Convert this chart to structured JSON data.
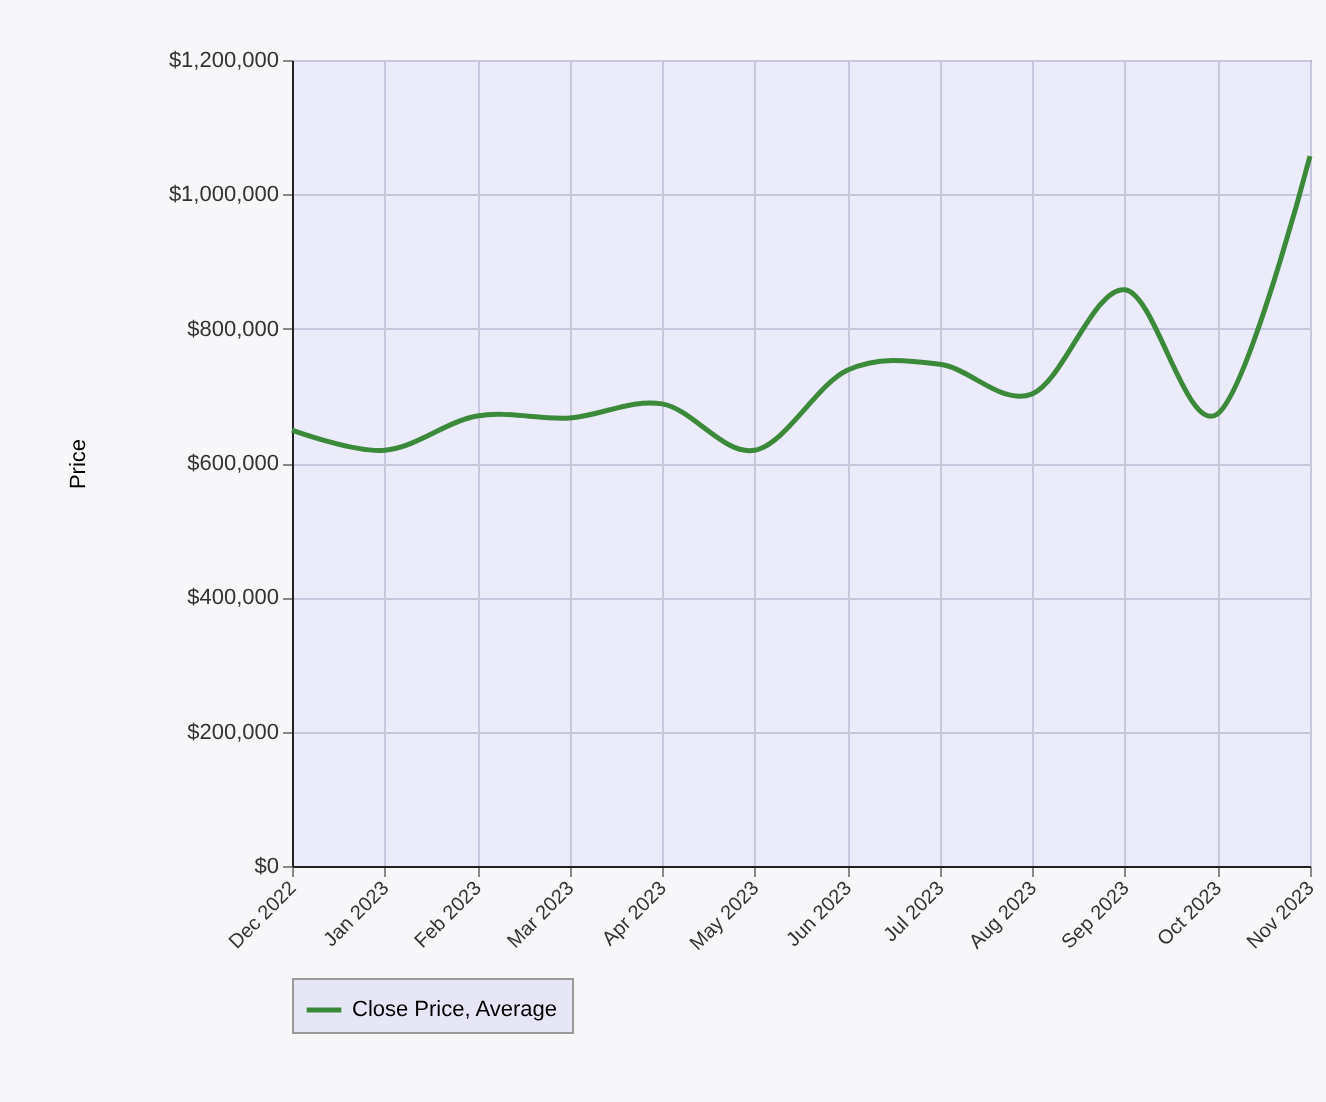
{
  "chart_data": {
    "type": "line",
    "ylabel": "Price",
    "categories": [
      "Dec 2022",
      "Jan 2023",
      "Feb 2023",
      "Mar 2023",
      "Apr 2023",
      "May 2023",
      "Jun 2023",
      "Jul 2023",
      "Aug 2023",
      "Sep 2023",
      "Oct 2023",
      "Nov 2023"
    ],
    "series": [
      {
        "name": "Close Price, Average",
        "color": "#3a8a3a",
        "values": [
          649000,
          619000,
          670000,
          667000,
          688000,
          619000,
          738000,
          747000,
          703000,
          858000,
          673000,
          1057000
        ]
      }
    ],
    "ylim": [
      0,
      1200000
    ],
    "yticks": [
      {
        "value": 0,
        "label": "$0"
      },
      {
        "value": 200000,
        "label": "$200,000"
      },
      {
        "value": 400000,
        "label": "$400,000"
      },
      {
        "value": 600000,
        "label": "$600,000"
      },
      {
        "value": 800000,
        "label": "$800,000"
      },
      {
        "value": 1000000,
        "label": "$1,000,000"
      },
      {
        "value": 1200000,
        "label": "$1,200,000"
      }
    ],
    "grid": true,
    "legend": "bottom",
    "marker": "none",
    "line_style": "solid"
  }
}
